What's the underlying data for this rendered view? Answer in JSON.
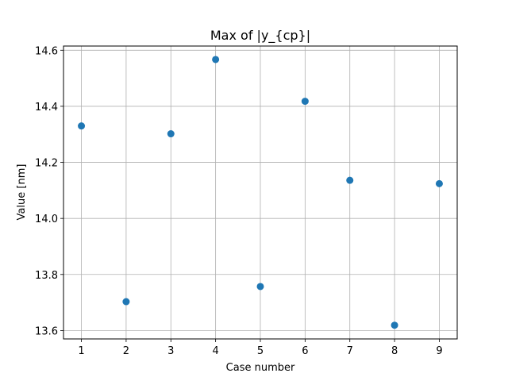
{
  "chart_data": {
    "type": "scatter",
    "title": "Max of |y_{cp}|",
    "xlabel": "Case number",
    "ylabel": "Value [nm]",
    "x": [
      1,
      2,
      3,
      4,
      5,
      6,
      7,
      8,
      9
    ],
    "y": [
      14.33,
      13.703,
      14.302,
      14.567,
      13.757,
      14.418,
      14.136,
      13.619,
      14.124
    ],
    "xlim": [
      0.6,
      9.4
    ],
    "ylim": [
      13.57,
      14.615
    ],
    "xticks": [
      1,
      2,
      3,
      4,
      5,
      6,
      7,
      8,
      9
    ],
    "xtick_labels": [
      "1",
      "2",
      "3",
      "4",
      "5",
      "6",
      "7",
      "8",
      "9"
    ],
    "yticks": [
      13.6,
      13.8,
      14.0,
      14.2,
      14.4,
      14.6
    ],
    "ytick_labels": [
      "13.6",
      "13.8",
      "14.0",
      "14.2",
      "14.4",
      "14.6"
    ],
    "grid": true,
    "marker_color": "#1f77b4",
    "grid_color": "#b0b0b0"
  }
}
